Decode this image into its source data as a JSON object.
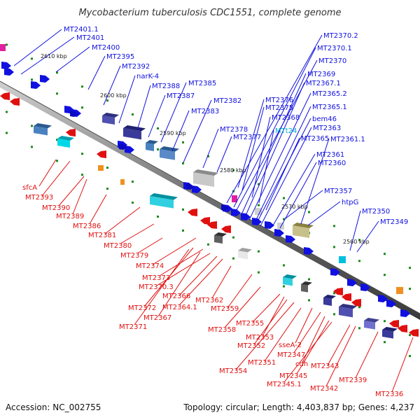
{
  "title": "Mycobacterium tuberculosis CDC1551, complete genome",
  "footer": {
    "accession": "Accession: NC_002755",
    "summary": "Topology: circular; Length: 4,403,837 bp; Genes: 4,237"
  },
  "colors": {
    "forward": "#1010e0",
    "reverse": "#e01010",
    "special": "#00b0d0",
    "backbone": "#7a7a7a",
    "tick": "#1a8a1a"
  },
  "scale": [
    {
      "label": "2610 kbp"
    },
    {
      "label": "2600 kbp"
    },
    {
      "label": "2590 kbp"
    },
    {
      "label": "2580 kbp"
    },
    {
      "label": "2570 kbp"
    },
    {
      "label": "2560 kbp"
    }
  ],
  "upper_labels": [
    {
      "text": "MT2401.1",
      "color": "blue"
    },
    {
      "text": "MT2401",
      "color": "blue"
    },
    {
      "text": "MT2400",
      "color": "blue"
    },
    {
      "text": "MT2395",
      "color": "blue"
    },
    {
      "text": "MT2392",
      "color": "blue"
    },
    {
      "text": "narK-4",
      "color": "blue"
    },
    {
      "text": "MT2388",
      "color": "blue"
    },
    {
      "text": "MT2387",
      "color": "blue"
    },
    {
      "text": "MT2385",
      "color": "blue"
    },
    {
      "text": "MT2383",
      "color": "blue"
    },
    {
      "text": "MT2382",
      "color": "blue"
    },
    {
      "text": "MT2378",
      "color": "blue"
    },
    {
      "text": "MT2377",
      "color": "blue"
    },
    {
      "text": "MT2376",
      "color": "blue"
    },
    {
      "text": "MT2375",
      "color": "blue"
    },
    {
      "text": "MT2368",
      "color": "blue"
    },
    {
      "text": "MTt24",
      "color": "cyan"
    },
    {
      "text": "MT2370.2",
      "color": "blue"
    },
    {
      "text": "MT2370.1",
      "color": "blue"
    },
    {
      "text": "MT2370",
      "color": "blue"
    },
    {
      "text": "MT2369",
      "color": "blue"
    },
    {
      "text": "MT2367.1",
      "color": "blue"
    },
    {
      "text": "MT2365.2",
      "color": "blue"
    },
    {
      "text": "MT2365.1",
      "color": "blue"
    },
    {
      "text": "bem46",
      "color": "blue"
    },
    {
      "text": "MT2363",
      "color": "blue"
    },
    {
      "text": "MT2365",
      "color": "blue"
    },
    {
      "text": "MT2361.1",
      "color": "blue"
    },
    {
      "text": "MT2361",
      "color": "blue"
    },
    {
      "text": "MT2360",
      "color": "blue"
    },
    {
      "text": "MT2357",
      "color": "blue"
    },
    {
      "text": "htpG",
      "color": "blue"
    },
    {
      "text": "MT2350",
      "color": "blue"
    },
    {
      "text": "MT2349",
      "color": "blue"
    }
  ],
  "lower_labels": [
    {
      "text": "sfcA",
      "color": "red"
    },
    {
      "text": "MT2393",
      "color": "red"
    },
    {
      "text": "MT2390",
      "color": "red"
    },
    {
      "text": "MT2389",
      "color": "red"
    },
    {
      "text": "MT2386",
      "color": "red"
    },
    {
      "text": "MT2381",
      "color": "red"
    },
    {
      "text": "MT2380",
      "color": "red"
    },
    {
      "text": "MT2379",
      "color": "red"
    },
    {
      "text": "MT2374",
      "color": "red"
    },
    {
      "text": "MT2373",
      "color": "red"
    },
    {
      "text": "MT2370.3",
      "color": "red"
    },
    {
      "text": "MT2366",
      "color": "red"
    },
    {
      "text": "MT2364.1",
      "color": "red"
    },
    {
      "text": "MT2372",
      "color": "red"
    },
    {
      "text": "MT2367",
      "color": "red"
    },
    {
      "text": "MT2371",
      "color": "red"
    },
    {
      "text": "MT2362",
      "color": "red"
    },
    {
      "text": "MT2359",
      "color": "red"
    },
    {
      "text": "MT2358",
      "color": "red"
    },
    {
      "text": "MT2355",
      "color": "red"
    },
    {
      "text": "MT2353",
      "color": "red"
    },
    {
      "text": "MT2352",
      "color": "red"
    },
    {
      "text": "MT2354",
      "color": "red"
    },
    {
      "text": "MT2351",
      "color": "red"
    },
    {
      "text": "sseA-2",
      "color": "red"
    },
    {
      "text": "MT2347",
      "color": "red"
    },
    {
      "text": "cdh",
      "color": "red"
    },
    {
      "text": "MT2345",
      "color": "red"
    },
    {
      "text": "MT2345.1",
      "color": "red"
    },
    {
      "text": "MT2343",
      "color": "red"
    },
    {
      "text": "MT2342",
      "color": "red"
    },
    {
      "text": "MT2339",
      "color": "red"
    },
    {
      "text": "MT2336",
      "color": "red"
    }
  ]
}
